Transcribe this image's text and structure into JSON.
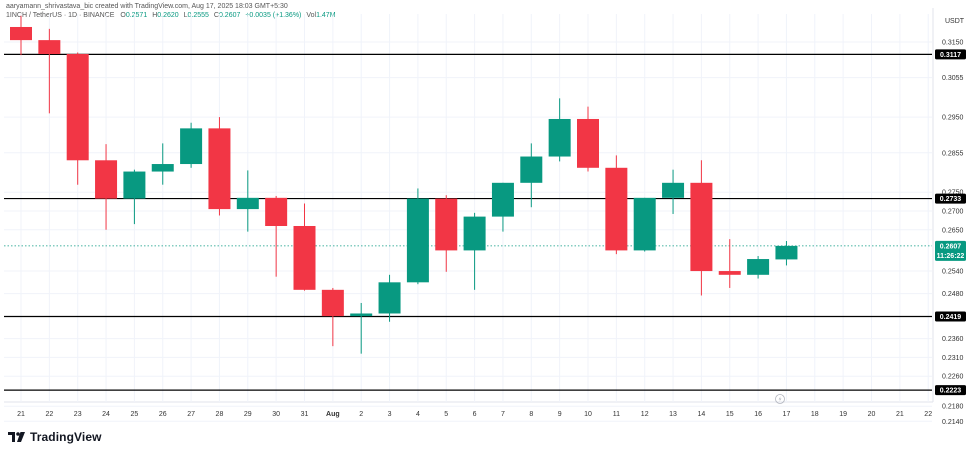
{
  "header": {
    "credit": "aaryamann_shrivastava_bic created with TradingView.com, Aug 17, 2025 18:03 GMT+5:30",
    "symbol": "1INCH / TetherUS · 1D · BINANCE",
    "o_label": "O",
    "o_value": "0.2571",
    "h_label": "H",
    "h_value": "0.2620",
    "l_label": "L",
    "l_value": "0.2555",
    "c_label": "C",
    "c_value": "0.2607",
    "change": "+0.0035 (+1.36%)",
    "vol_label": "Vol",
    "vol_value": "1.47M"
  },
  "currency": "USDT",
  "footer": {
    "brand": "TradingView"
  },
  "colors": {
    "up": "#089981",
    "down": "#f23645",
    "line": "#000000",
    "grid": "#f0f3fa"
  },
  "chart_data": {
    "type": "candlestick",
    "y_ticks": [
      0.214,
      0.218,
      0.226,
      0.231,
      0.236,
      0.248,
      0.254,
      0.265,
      0.27,
      0.275,
      0.2855,
      0.295,
      0.3055,
      0.315
    ],
    "y_tick_labels": [
      "0.2140",
      "0.2180",
      "0.2260",
      "0.2310",
      "0.2360",
      "0.2480",
      "0.2540",
      "0.2650",
      "0.2700",
      "0.2750",
      "0.2855",
      "0.2950",
      "0.3055",
      "0.3150"
    ],
    "x_labels": [
      "21",
      "22",
      "23",
      "24",
      "25",
      "26",
      "27",
      "28",
      "29",
      "30",
      "31",
      "Aug",
      "2",
      "3",
      "4",
      "5",
      "6",
      "7",
      "8",
      "9",
      "10",
      "11",
      "12",
      "13",
      "14",
      "15",
      "16",
      "17",
      "18",
      "19",
      "20",
      "21",
      "22"
    ],
    "candles": [
      {
        "x": "Jul 21",
        "o": 0.319,
        "h": 0.322,
        "l": 0.3115,
        "c": 0.3155
      },
      {
        "x": "Jul 22",
        "o": 0.3155,
        "h": 0.3185,
        "l": 0.296,
        "c": 0.3118
      },
      {
        "x": "Jul 23",
        "o": 0.3118,
        "h": 0.3122,
        "l": 0.277,
        "c": 0.2835
      },
      {
        "x": "Jul 24",
        "o": 0.2835,
        "h": 0.2878,
        "l": 0.265,
        "c": 0.2733
      },
      {
        "x": "Jul 25",
        "o": 0.2733,
        "h": 0.281,
        "l": 0.2665,
        "c": 0.2805
      },
      {
        "x": "Jul 26",
        "o": 0.2805,
        "h": 0.288,
        "l": 0.277,
        "c": 0.2825
      },
      {
        "x": "Jul 27",
        "o": 0.2825,
        "h": 0.2935,
        "l": 0.2815,
        "c": 0.292
      },
      {
        "x": "Jul 28",
        "o": 0.292,
        "h": 0.295,
        "l": 0.2688,
        "c": 0.2705
      },
      {
        "x": "Jul 29",
        "o": 0.2705,
        "h": 0.2808,
        "l": 0.2645,
        "c": 0.2735
      },
      {
        "x": "Jul 30",
        "o": 0.2735,
        "h": 0.274,
        "l": 0.2525,
        "c": 0.266
      },
      {
        "x": "Jul 31",
        "o": 0.266,
        "h": 0.272,
        "l": 0.2488,
        "c": 0.249
      },
      {
        "x": "Aug 1",
        "o": 0.249,
        "h": 0.2495,
        "l": 0.234,
        "c": 0.242
      },
      {
        "x": "Aug 2",
        "o": 0.242,
        "h": 0.2455,
        "l": 0.232,
        "c": 0.2427
      },
      {
        "x": "Aug 3",
        "o": 0.2427,
        "h": 0.253,
        "l": 0.2405,
        "c": 0.251
      },
      {
        "x": "Aug 4",
        "o": 0.251,
        "h": 0.276,
        "l": 0.2505,
        "c": 0.2733
      },
      {
        "x": "Aug 5",
        "o": 0.2733,
        "h": 0.2742,
        "l": 0.2538,
        "c": 0.2595
      },
      {
        "x": "Aug 6",
        "o": 0.2595,
        "h": 0.2695,
        "l": 0.249,
        "c": 0.2685
      },
      {
        "x": "Aug 7",
        "o": 0.2685,
        "h": 0.2775,
        "l": 0.2645,
        "c": 0.2775
      },
      {
        "x": "Aug 8",
        "o": 0.2775,
        "h": 0.288,
        "l": 0.271,
        "c": 0.2845
      },
      {
        "x": "Aug 9",
        "o": 0.2845,
        "h": 0.3,
        "l": 0.2832,
        "c": 0.2945
      },
      {
        "x": "Aug 10",
        "o": 0.2945,
        "h": 0.2978,
        "l": 0.2805,
        "c": 0.2815
      },
      {
        "x": "Aug 11",
        "o": 0.2815,
        "h": 0.2848,
        "l": 0.2585,
        "c": 0.2595
      },
      {
        "x": "Aug 12",
        "o": 0.2595,
        "h": 0.2735,
        "l": 0.2592,
        "c": 0.2735
      },
      {
        "x": "Aug 13",
        "o": 0.2735,
        "h": 0.281,
        "l": 0.2692,
        "c": 0.2775
      },
      {
        "x": "Aug 14",
        "o": 0.2775,
        "h": 0.2835,
        "l": 0.2475,
        "c": 0.254
      },
      {
        "x": "Aug 15",
        "o": 0.254,
        "h": 0.2625,
        "l": 0.2495,
        "c": 0.253
      },
      {
        "x": "Aug 16",
        "o": 0.253,
        "h": 0.258,
        "l": 0.252,
        "c": 0.2572
      },
      {
        "x": "Aug 17",
        "o": 0.2571,
        "h": 0.262,
        "l": 0.2555,
        "c": 0.2607
      }
    ],
    "horizontal_lines": [
      {
        "value": 0.3117,
        "label": "0.3117"
      },
      {
        "value": 0.2733,
        "label": "0.2733"
      },
      {
        "value": 0.2419,
        "label": "0.2419"
      },
      {
        "value": 0.2223,
        "label": "0.2223"
      }
    ],
    "last_price": {
      "value": 0.2607,
      "label": "0.2607",
      "countdown": "11:26:22"
    }
  }
}
